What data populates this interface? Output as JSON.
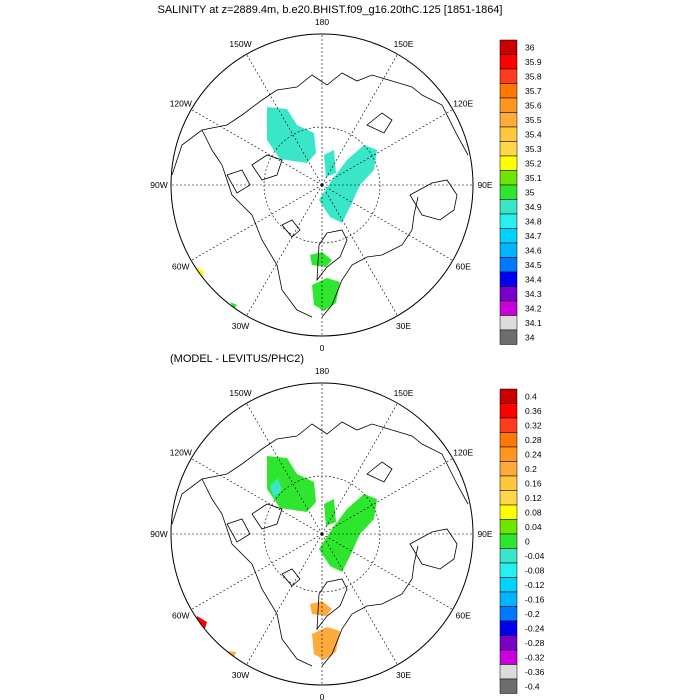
{
  "figure_title": "SALINITY at z=2889.4m, b.e20.BHIST.f09_g16.20thC.125 [1851-1864]",
  "panel2_title": "(MODEL - LEVITUS/PHC2)",
  "lon_labels": {
    "top": "180",
    "bottom": "0",
    "left": "90W",
    "right": "90E",
    "upper_left": "150W",
    "upper_right": "150E",
    "mid_upper_left": "120W",
    "mid_upper_right": "120E",
    "mid_lower_left": "60W",
    "mid_lower_right": "60E",
    "lower_left": "30W",
    "lower_right": "30E"
  },
  "colors": {
    "land_line": "#000000",
    "grid_line": "#000000",
    "ocean_bg": "#ffffff"
  },
  "chart_data": [
    {
      "type": "map",
      "panel": "salinity",
      "units": "psu",
      "legend": {
        "labels": [
          "36",
          "35.9",
          "35.8",
          "35.7",
          "35.6",
          "35.5",
          "35.4",
          "35.3",
          "35.2",
          "35.1",
          "35",
          "34.9",
          "34.8",
          "34.7",
          "34.6",
          "34.5",
          "34.4",
          "34.3",
          "34.2",
          "34.1",
          "34"
        ],
        "colors": [
          "#c80000",
          "#ff0000",
          "#ff3c1e",
          "#ff7800",
          "#ff9620",
          "#ffaa3c",
          "#ffc83c",
          "#ffd84a",
          "#ffff00",
          "#6ee600",
          "#2ee62e",
          "#39e6c8",
          "#28f0f0",
          "#00d2ff",
          "#00b4ff",
          "#0078ff",
          "#0000f0",
          "#7800c8",
          "#c800dc",
          "#dcdcdc",
          "#6e6e6e"
        ]
      },
      "regions": [
        {
          "name": "canada-basin",
          "value": 35.0,
          "color": "#39e6c8"
        },
        {
          "name": "beaufort-patch",
          "value": 35.0,
          "color": "#39e6c8"
        },
        {
          "name": "eurasian-basin",
          "value": 35.0,
          "color": "#39e6c8"
        },
        {
          "name": "fram-strait",
          "value": 35.1,
          "color": "#2ee62e"
        },
        {
          "name": "nordic-seas",
          "value": 35.1,
          "color": "#2ee62e"
        },
        {
          "name": "labrador-yellow",
          "value": 35.3,
          "color": "#ffff00"
        },
        {
          "name": "atlantic-green",
          "value": 35.1,
          "color": "#2ee62e"
        }
      ]
    },
    {
      "type": "map",
      "panel": "difference",
      "units": "psu",
      "legend": {
        "labels": [
          "0.4",
          "0.36",
          "0.32",
          "0.28",
          "0.24",
          "0.2",
          "0.16",
          "0.12",
          "0.08",
          "0.04",
          "0",
          "-0.04",
          "-0.08",
          "-0.12",
          "-0.16",
          "-0.2",
          "-0.24",
          "-0.28",
          "-0.32",
          "-0.36",
          "-0.4"
        ],
        "colors": [
          "#c80000",
          "#ff0000",
          "#ff3c1e",
          "#ff7800",
          "#ff9620",
          "#ffaa3c",
          "#ffc83c",
          "#ffd84a",
          "#ffff00",
          "#6ee600",
          "#2ee62e",
          "#39e6c8",
          "#28f0f0",
          "#00d2ff",
          "#00b4ff",
          "#0078ff",
          "#0000f0",
          "#7800c8",
          "#c800dc",
          "#dcdcdc",
          "#6e6e6e"
        ]
      },
      "regions": [
        {
          "name": "canada-basin",
          "value": 0.02,
          "color": "#2ee62e"
        },
        {
          "name": "canada-cyan-spot",
          "value": -0.02,
          "color": "#39e6c8"
        },
        {
          "name": "beaufort-patch",
          "value": 0.02,
          "color": "#2ee62e"
        },
        {
          "name": "eurasian-basin",
          "value": 0.02,
          "color": "#2ee62e"
        },
        {
          "name": "fram-strait",
          "value": 0.18,
          "color": "#ffaa3c"
        },
        {
          "name": "nordic-seas",
          "value": 0.18,
          "color": "#ffaa3c"
        },
        {
          "name": "labrador-red",
          "value": 0.34,
          "color": "#ff0000"
        },
        {
          "name": "atlantic-orange",
          "value": 0.18,
          "color": "#ffaa3c"
        }
      ]
    }
  ]
}
